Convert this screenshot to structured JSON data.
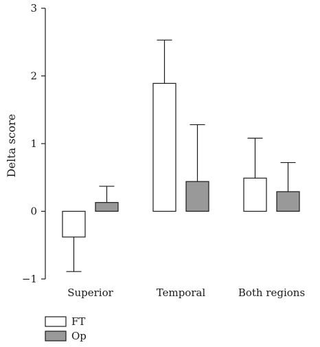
{
  "chart_data": {
    "type": "bar",
    "title": "",
    "xlabel": "",
    "ylabel": "Delta score",
    "ylim": [
      -1,
      3
    ],
    "yticks": [
      -1,
      0,
      1,
      2,
      3
    ],
    "ytick_labels": [
      "−1",
      "0",
      "1",
      "2",
      "3"
    ],
    "categories": [
      "Superior",
      "Temporal",
      "Both regions"
    ],
    "series": [
      {
        "name": "FT",
        "color": "#ffffff",
        "values": [
          -0.38,
          1.89,
          0.49
        ],
        "errors": [
          0.51,
          0.64,
          0.59
        ]
      },
      {
        "name": "Op",
        "color": "#999999",
        "values": [
          0.13,
          0.44,
          0.29
        ],
        "errors": [
          0.24,
          0.84,
          0.43
        ]
      }
    ],
    "error_bar_direction": "away-from-zero",
    "legend_position": "bottom-left",
    "grid": false
  }
}
